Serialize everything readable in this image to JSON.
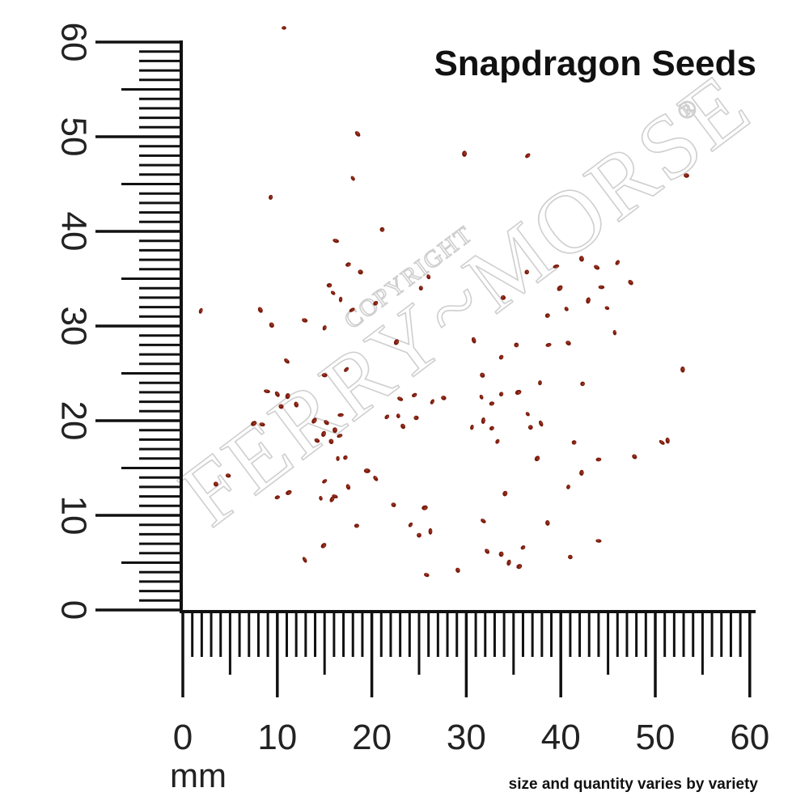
{
  "title": "Snapdragon Seeds",
  "footnote": "size and quantity varies by variety",
  "unit": "mm",
  "watermark": {
    "brand": "FERRY~MORSE",
    "copyright": "COPYRIGHT",
    "registered": "®"
  },
  "colors": {
    "ruler": "#111111",
    "seed": "#7a1b0e",
    "seed_highlight": "#c0512f",
    "watermark": "#cfcfcf"
  },
  "chart_data": {
    "type": "scatter",
    "xlabel": "mm",
    "xlim": [
      0,
      60
    ],
    "ylim": [
      0,
      60
    ],
    "xticks": [
      "0",
      "10",
      "20",
      "30",
      "40",
      "50",
      "60"
    ],
    "yticks": [
      "0",
      "10",
      "20",
      "30",
      "40",
      "50",
      "60"
    ],
    "points": [
      [
        10.7,
        61.5
      ],
      [
        18.5,
        50.3
      ],
      [
        29.8,
        48.2
      ],
      [
        36.5,
        48.0
      ],
      [
        53.3,
        45.9
      ],
      [
        18.0,
        45.6
      ],
      [
        9.3,
        43.6
      ],
      [
        21.1,
        40.2
      ],
      [
        16.2,
        39.0
      ],
      [
        8.2,
        31.7
      ],
      [
        1.9,
        31.6
      ],
      [
        17.5,
        36.5
      ],
      [
        18.8,
        35.7
      ],
      [
        26.0,
        35.2
      ],
      [
        36.4,
        35.7
      ],
      [
        39.5,
        36.3
      ],
      [
        43.8,
        36.2
      ],
      [
        42.2,
        37.1
      ],
      [
        46.0,
        36.7
      ],
      [
        15.5,
        34.3
      ],
      [
        15.9,
        33.5
      ],
      [
        25.2,
        34.0
      ],
      [
        39.9,
        34.0
      ],
      [
        44.3,
        34.1
      ],
      [
        47.4,
        34.6
      ],
      [
        16.7,
        32.8
      ],
      [
        20.4,
        32.4
      ],
      [
        33.9,
        33.0
      ],
      [
        40.6,
        31.8
      ],
      [
        42.9,
        32.7
      ],
      [
        17.9,
        31.7
      ],
      [
        12.9,
        30.6
      ],
      [
        9.4,
        30.1
      ],
      [
        15.0,
        29.8
      ],
      [
        38.6,
        31.1
      ],
      [
        44.9,
        31.9
      ],
      [
        30.8,
        28.5
      ],
      [
        22.6,
        28.3
      ],
      [
        38.7,
        28.0
      ],
      [
        40.8,
        28.2
      ],
      [
        45.7,
        29.3
      ],
      [
        33.7,
        26.7
      ],
      [
        35.3,
        28.0
      ],
      [
        11.0,
        26.3
      ],
      [
        52.9,
        25.4
      ],
      [
        17.3,
        25.4
      ],
      [
        15.0,
        24.8
      ],
      [
        31.7,
        24.8
      ],
      [
        37.8,
        24.0
      ],
      [
        42.3,
        23.9
      ],
      [
        8.9,
        23.1
      ],
      [
        10.0,
        22.8
      ],
      [
        11.1,
        22.6
      ],
      [
        24.5,
        22.7
      ],
      [
        27.6,
        22.4
      ],
      [
        31.6,
        22.5
      ],
      [
        33.7,
        22.8
      ],
      [
        35.5,
        23.0
      ],
      [
        23.0,
        22.3
      ],
      [
        12.0,
        21.7
      ],
      [
        26.4,
        22.0
      ],
      [
        32.7,
        21.8
      ],
      [
        10.4,
        21.5
      ],
      [
        22.8,
        20.5
      ],
      [
        13.9,
        20.0
      ],
      [
        16.7,
        20.6
      ],
      [
        15.2,
        19.8
      ],
      [
        16.1,
        19.0
      ],
      [
        21.6,
        20.4
      ],
      [
        24.7,
        20.3
      ],
      [
        36.5,
        20.7
      ],
      [
        31.8,
        20.0
      ],
      [
        7.5,
        19.7
      ],
      [
        8.4,
        19.6
      ],
      [
        23.3,
        19.4
      ],
      [
        30.6,
        19.3
      ],
      [
        32.7,
        19.2
      ],
      [
        36.8,
        19.3
      ],
      [
        37.9,
        19.7
      ],
      [
        14.9,
        18.6
      ],
      [
        16.6,
        18.4
      ],
      [
        14.2,
        17.9
      ],
      [
        15.7,
        17.8
      ],
      [
        33.3,
        17.8
      ],
      [
        41.4,
        17.7
      ],
      [
        50.7,
        17.7
      ],
      [
        51.3,
        17.9
      ],
      [
        37.5,
        16.0
      ],
      [
        44.0,
        15.9
      ],
      [
        47.8,
        16.2
      ],
      [
        16.4,
        16.0
      ],
      [
        17.2,
        16.1
      ],
      [
        19.5,
        14.7
      ],
      [
        20.4,
        13.9
      ],
      [
        42.2,
        14.5
      ],
      [
        15.0,
        13.6
      ],
      [
        4.8,
        14.2
      ],
      [
        3.5,
        13.3
      ],
      [
        40.8,
        13.0
      ],
      [
        11.2,
        12.4
      ],
      [
        16.1,
        12.0
      ],
      [
        17.5,
        13.0
      ],
      [
        34.1,
        12.3
      ],
      [
        10.0,
        11.9
      ],
      [
        22.3,
        11.1
      ],
      [
        14.6,
        11.8
      ],
      [
        15.8,
        11.7
      ],
      [
        25.6,
        10.8
      ],
      [
        31.8,
        9.4
      ],
      [
        38.6,
        9.2
      ],
      [
        24.1,
        9.0
      ],
      [
        18.4,
        8.9
      ],
      [
        25.0,
        7.9
      ],
      [
        26.2,
        8.3
      ],
      [
        14.9,
        6.8
      ],
      [
        44.0,
        7.3
      ],
      [
        32.2,
        6.2
      ],
      [
        33.7,
        5.9
      ],
      [
        36.0,
        6.6
      ],
      [
        41.0,
        5.6
      ],
      [
        12.9,
        5.3
      ],
      [
        34.5,
        5.0
      ],
      [
        35.6,
        4.6
      ],
      [
        25.8,
        3.7
      ],
      [
        29.1,
        4.2
      ]
    ]
  }
}
